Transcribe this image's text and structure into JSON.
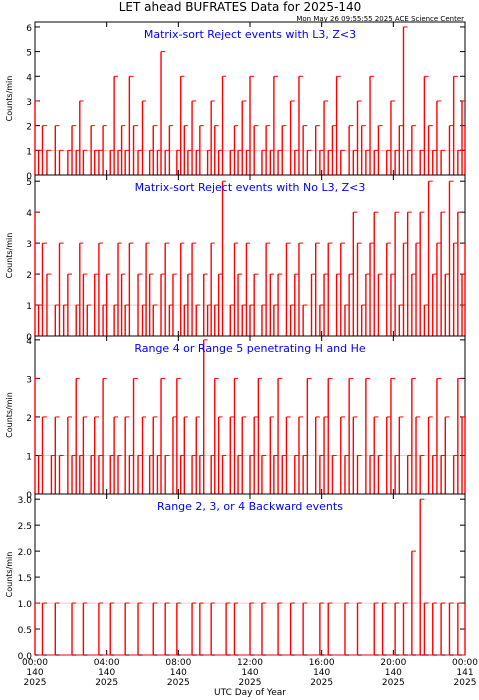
{
  "page": {
    "title": "LET ahead BUFRATES Data for 2025-140",
    "timestamp": "Mon May 26 09:55:55 2025 ACE Science Center",
    "xlabel": "UTC Day of Year"
  },
  "colors": {
    "data": "#ff0000",
    "panel_title": "#0000ff",
    "axes": "#000000",
    "background": "#ffffff"
  },
  "chart_data": [
    {
      "type": "line",
      "title": "Matrix-sort Reject events with L3, Z<3",
      "ylabel": "Counts/min",
      "ylim": [
        0,
        6.2
      ],
      "yticks": [
        "0",
        "1",
        "2",
        "3",
        "4",
        "5",
        "6"
      ],
      "xlim": [
        0,
        1440
      ],
      "grid": false,
      "series": [
        {
          "x": [
            0,
            12,
            25,
            40,
            55,
            68,
            82,
            96,
            110,
            124,
            138,
            150,
            162,
            175,
            188,
            200,
            214,
            228,
            240,
            252,
            265,
            278,
            290,
            302,
            316,
            330,
            345,
            360,
            372,
            384,
            396,
            410,
            422,
            436,
            450,
            462,
            475,
            488,
            500,
            512,
            526,
            540,
            552,
            565,
            578,
            590,
            602,
            615,
            628,
            640,
            654,
            668,
            680,
            694,
            708,
            720,
            734,
            748,
            760,
            774,
            788,
            800,
            814,
            828,
            842,
            856,
            870,
            884,
            898,
            912,
            926,
            940,
            954,
            968,
            982,
            996,
            1010,
            1024,
            1038,
            1052,
            1066,
            1080,
            1094,
            1108,
            1122,
            1136,
            1150,
            1164,
            1178,
            1192,
            1206,
            1220,
            1234,
            1248,
            1262,
            1276,
            1290,
            1304,
            1318,
            1332,
            1346,
            1360,
            1374,
            1388,
            1402,
            1416,
            1430,
            1440
          ],
          "values": [
            3,
            1,
            2,
            1,
            0,
            2,
            1,
            0,
            1,
            2,
            1,
            3,
            1,
            0,
            2,
            1,
            1,
            2,
            0,
            1,
            4,
            1,
            2,
            1,
            4,
            2,
            1,
            3,
            0,
            1,
            2,
            1,
            5,
            1,
            2,
            0,
            1,
            4,
            2,
            1,
            3,
            1,
            2,
            0,
            1,
            3,
            2,
            1,
            4,
            0,
            1,
            2,
            1,
            3,
            1,
            4,
            2,
            0,
            1,
            2,
            1,
            4,
            1,
            2,
            0,
            3,
            1,
            4,
            2,
            1,
            0,
            2,
            1,
            3,
            1,
            2,
            4,
            1,
            0,
            2,
            1,
            3,
            2,
            1,
            4,
            1,
            2,
            0,
            1,
            3,
            1,
            2,
            6,
            1,
            2,
            0,
            1,
            4,
            2,
            1,
            3,
            1,
            0,
            2,
            4,
            1,
            3,
            2
          ]
        }
      ]
    },
    {
      "type": "line",
      "title": "Matrix-sort Reject events with No L3, Z<3",
      "ylabel": "Counts/min",
      "ylim": [
        0,
        5.2
      ],
      "yticks": [
        "0",
        "1",
        "2",
        "3",
        "4",
        "5"
      ],
      "xlim": [
        0,
        1440
      ],
      "grid": false,
      "series": [
        {
          "x": [
            0,
            12,
            25,
            40,
            55,
            68,
            82,
            96,
            110,
            124,
            138,
            150,
            162,
            175,
            188,
            200,
            214,
            228,
            240,
            252,
            265,
            278,
            290,
            302,
            316,
            330,
            345,
            360,
            372,
            384,
            396,
            410,
            422,
            436,
            450,
            462,
            475,
            488,
            500,
            512,
            526,
            540,
            552,
            565,
            578,
            590,
            602,
            615,
            628,
            640,
            654,
            668,
            680,
            694,
            708,
            720,
            734,
            748,
            760,
            774,
            788,
            800,
            814,
            828,
            842,
            856,
            870,
            884,
            898,
            912,
            926,
            940,
            954,
            968,
            982,
            996,
            1010,
            1024,
            1038,
            1052,
            1066,
            1080,
            1094,
            1108,
            1122,
            1136,
            1150,
            1164,
            1178,
            1192,
            1206,
            1220,
            1234,
            1248,
            1262,
            1276,
            1290,
            1304,
            1318,
            1332,
            1346,
            1360,
            1374,
            1388,
            1402,
            1416,
            1430,
            1440
          ],
          "values": [
            4,
            1,
            3,
            2,
            0,
            1,
            3,
            1,
            2,
            0,
            1,
            3,
            2,
            1,
            0,
            2,
            3,
            1,
            2,
            0,
            1,
            3,
            2,
            1,
            3,
            0,
            2,
            1,
            3,
            2,
            1,
            0,
            2,
            3,
            1,
            2,
            0,
            3,
            1,
            2,
            3,
            1,
            0,
            2,
            1,
            3,
            1,
            2,
            5,
            0,
            1,
            3,
            2,
            1,
            3,
            1,
            2,
            0,
            1,
            3,
            2,
            1,
            2,
            0,
            3,
            1,
            2,
            3,
            1,
            0,
            2,
            3,
            1,
            2,
            3,
            0,
            2,
            3,
            1,
            2,
            4,
            3,
            1,
            2,
            3,
            4,
            2,
            0,
            3,
            2,
            4,
            1,
            3,
            4,
            2,
            3,
            4,
            1,
            5,
            2,
            3,
            4,
            2,
            5,
            3,
            4,
            2,
            3
          ]
        }
      ]
    },
    {
      "type": "line",
      "title": "Range 4 or Range 5 penetrating H and He",
      "ylabel": "Counts/min",
      "ylim": [
        0,
        4.1
      ],
      "yticks": [
        "0",
        "1",
        "2",
        "3",
        "4"
      ],
      "xlim": [
        0,
        1440
      ],
      "grid": false,
      "series": [
        {
          "x": [
            0,
            12,
            25,
            40,
            55,
            68,
            82,
            96,
            110,
            124,
            138,
            150,
            162,
            175,
            188,
            200,
            214,
            228,
            240,
            252,
            265,
            278,
            290,
            302,
            316,
            330,
            345,
            360,
            372,
            384,
            396,
            410,
            422,
            436,
            450,
            462,
            475,
            488,
            500,
            512,
            526,
            540,
            552,
            565,
            578,
            590,
            602,
            615,
            628,
            640,
            654,
            668,
            680,
            694,
            708,
            720,
            734,
            748,
            760,
            774,
            788,
            800,
            814,
            828,
            842,
            856,
            870,
            884,
            898,
            912,
            926,
            940,
            954,
            968,
            982,
            996,
            1010,
            1024,
            1038,
            1052,
            1066,
            1080,
            1094,
            1108,
            1122,
            1136,
            1150,
            1164,
            1178,
            1192,
            1206,
            1220,
            1234,
            1248,
            1262,
            1276,
            1290,
            1304,
            1318,
            1332,
            1346,
            1360,
            1374,
            1388,
            1402,
            1416,
            1430,
            1440
          ],
          "values": [
            3,
            1,
            2,
            0,
            1,
            2,
            1,
            0,
            2,
            1,
            3,
            1,
            2,
            0,
            1,
            2,
            1,
            3,
            0,
            1,
            2,
            1,
            0,
            2,
            1,
            3,
            1,
            2,
            0,
            1,
            2,
            1,
            3,
            1,
            0,
            2,
            3,
            1,
            2,
            0,
            1,
            2,
            1,
            4,
            0,
            1,
            3,
            2,
            1,
            0,
            2,
            3,
            1,
            2,
            0,
            1,
            2,
            3,
            1,
            0,
            2,
            1,
            3,
            1,
            2,
            0,
            1,
            2,
            1,
            3,
            0,
            2,
            1,
            2,
            3,
            1,
            0,
            2,
            1,
            3,
            2,
            1,
            0,
            3,
            1,
            2,
            1,
            0,
            2,
            3,
            1,
            2,
            0,
            1,
            3,
            2,
            1,
            0,
            2,
            1,
            3,
            1,
            2,
            0,
            1,
            3,
            2,
            2
          ]
        }
      ]
    },
    {
      "type": "line",
      "title": "Range 2, 3, or 4 Backward events",
      "ylabel": "Counts/min",
      "ylim": [
        0,
        3.1
      ],
      "yticks": [
        "0.0",
        "0.5",
        "1.0",
        "1.5",
        "2.0",
        "2.5",
        "3.0"
      ],
      "xlim": [
        0,
        1440
      ],
      "xticks": [
        {
          "time": "00:00",
          "day": "140",
          "year": "2025"
        },
        {
          "time": "04:00",
          "day": "140",
          "year": "2025"
        },
        {
          "time": "08:00",
          "day": "140",
          "year": "2025"
        },
        {
          "time": "12:00",
          "day": "140",
          "year": "2025"
        },
        {
          "time": "16:00",
          "day": "140",
          "year": "2025"
        },
        {
          "time": "20:00",
          "day": "140",
          "year": "2025"
        },
        {
          "time": "00:00",
          "day": "141",
          "year": "2025"
        }
      ],
      "grid": false,
      "series": [
        {
          "x": [
            0,
            12,
            25,
            40,
            55,
            68,
            82,
            96,
            110,
            124,
            138,
            150,
            162,
            175,
            188,
            200,
            214,
            228,
            240,
            252,
            265,
            278,
            290,
            302,
            316,
            330,
            345,
            360,
            372,
            384,
            396,
            410,
            422,
            436,
            450,
            462,
            475,
            488,
            500,
            512,
            526,
            540,
            552,
            565,
            578,
            590,
            602,
            615,
            628,
            640,
            654,
            668,
            680,
            694,
            708,
            720,
            734,
            748,
            760,
            774,
            788,
            800,
            814,
            828,
            842,
            856,
            870,
            884,
            898,
            912,
            926,
            940,
            954,
            968,
            982,
            996,
            1010,
            1024,
            1038,
            1052,
            1066,
            1080,
            1094,
            1108,
            1122,
            1136,
            1150,
            1164,
            1178,
            1192,
            1206,
            1220,
            1234,
            1248,
            1262,
            1276,
            1290,
            1304,
            1318,
            1332,
            1346,
            1360,
            1374,
            1388,
            1402,
            1416,
            1430,
            1440
          ],
          "values": [
            1,
            0,
            1,
            0,
            0,
            1,
            0,
            0,
            0,
            1,
            0,
            0,
            1,
            0,
            0,
            0,
            1,
            0,
            0,
            1,
            0,
            0,
            0,
            1,
            0,
            0,
            1,
            0,
            0,
            0,
            1,
            0,
            0,
            1,
            0,
            0,
            1,
            0,
            0,
            0,
            1,
            0,
            1,
            0,
            0,
            1,
            0,
            0,
            0,
            1,
            0,
            1,
            0,
            0,
            0,
            1,
            0,
            0,
            1,
            0,
            0,
            0,
            1,
            0,
            0,
            1,
            0,
            0,
            1,
            0,
            0,
            0,
            1,
            0,
            1,
            0,
            0,
            0,
            1,
            0,
            0,
            1,
            0,
            0,
            0,
            1,
            0,
            1,
            0,
            0,
            1,
            0,
            1,
            0,
            2,
            0,
            3,
            1,
            0,
            1,
            0,
            1,
            0,
            1,
            0,
            1,
            0,
            1
          ]
        }
      ]
    }
  ]
}
